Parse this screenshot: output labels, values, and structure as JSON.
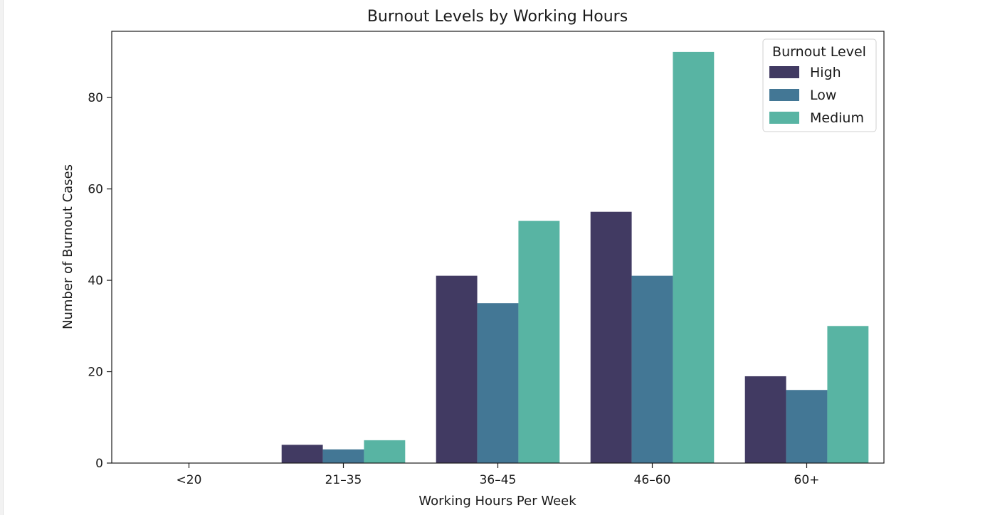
{
  "chart_data": {
    "type": "bar",
    "title": "Burnout Levels by Working Hours",
    "xlabel": "Working Hours Per Week",
    "ylabel": "Number of Burnout Cases",
    "categories": [
      "<20",
      "21–35",
      "36–45",
      "46–60",
      "60+"
    ],
    "series": [
      {
        "name": "High",
        "color": "#413a62",
        "values": [
          0,
          4,
          41,
          55,
          19
        ]
      },
      {
        "name": "Low",
        "color": "#437795",
        "values": [
          0,
          3,
          35,
          41,
          16
        ]
      },
      {
        "name": "Medium",
        "color": "#58b4a3",
        "values": [
          0,
          5,
          53,
          90,
          30
        ]
      }
    ],
    "ylim": [
      0,
      94.5
    ],
    "yticks": [
      0,
      20,
      40,
      60,
      80
    ],
    "grid": false,
    "legend": {
      "title": "Burnout Level",
      "position": "top-right"
    }
  }
}
